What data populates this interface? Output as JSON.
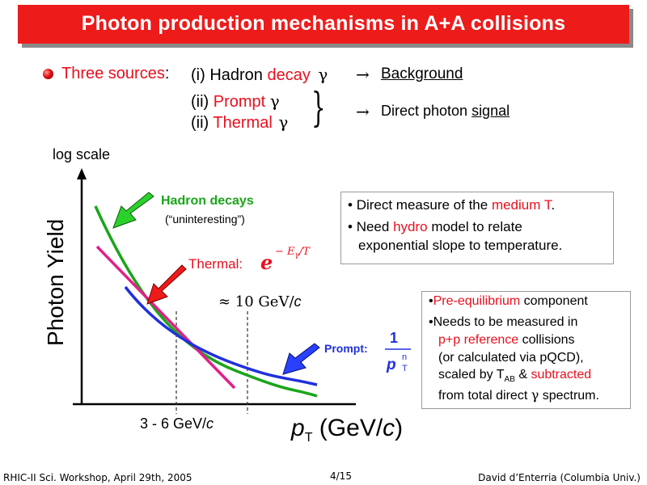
{
  "slide": {
    "title": "Photon production mechanisms in A+A collisions",
    "sources": {
      "label": "Three sources",
      "colon": ":",
      "item1_prefix": "(i) Hadron ",
      "item1_red": "decay",
      "item2_prefix": "(ii) ",
      "item2_red": "Prompt",
      "item3_prefix": "(ii) ",
      "item3_red": "Thermal",
      "gamma": "γ",
      "arrow": "→",
      "background_label": "Background",
      "direct_prefix": "Direct photon ",
      "direct_underlined": "signal"
    },
    "box1": {
      "bullet": "•",
      "line1_prefix": "Direct measure of the ",
      "line1_red": "medium T",
      "line1_suffix": ".",
      "line2_prefix": "Need ",
      "line2_red": "hydro",
      "line2_suffix": " model to relate",
      "line3": "exponential slope to temperature."
    },
    "box2": {
      "bullet": "•",
      "line1_red": "Pre-equilibrium",
      "line1_suffix": " component",
      "line2": "Needs to be measured in",
      "line3_red": "p+p reference",
      "line3_suffix": " collisions",
      "line4": "(or calculated via pQCD),",
      "line5_prefix": "scaled by T",
      "line5_sub": "AB",
      "line5_mid": " & ",
      "line5_red": "subtracted",
      "line6_prefix": "from total direct ",
      "line6_gamma": "γ",
      "line6_suffix": " spectrum."
    },
    "plot": {
      "log_scale": "log scale",
      "ylabel": "Photon Yield",
      "xlabel_p": "p",
      "xlabel_sub": "T",
      "xlabel_rest": " (GeV/",
      "xlabel_c": "c",
      "xlabel_close": ")",
      "hadron_label": "Hadron decays",
      "hadron_sub": "(“uninteresting”)",
      "thermal_label": "Thermal:",
      "thermal_e": "e",
      "thermal_exp": "− E",
      "thermal_exp_sub": "γ",
      "thermal_exp_rest": "/T",
      "approx_label": "≈ 10 GeV/",
      "approx_c": "c",
      "range_label": "3 - 6 GeV/",
      "range_c": "c",
      "prompt_label": "Prompt:",
      "prompt_num": "1",
      "prompt_den_p": "p",
      "prompt_den_n": "n",
      "prompt_den_T": "T"
    },
    "colors": {
      "title_bg": "#ee1b1b",
      "red_text": "#e8101e",
      "hadron_curve": "#1aa51a",
      "thermal_curve": "#e0208a",
      "prompt_curve": "#2030dd"
    },
    "footer": {
      "left": "RHIC-II Sci. Workshop, April 29th, 2005",
      "center": "4/15",
      "right": "David d’Enterria (Columbia Univ.)"
    }
  }
}
